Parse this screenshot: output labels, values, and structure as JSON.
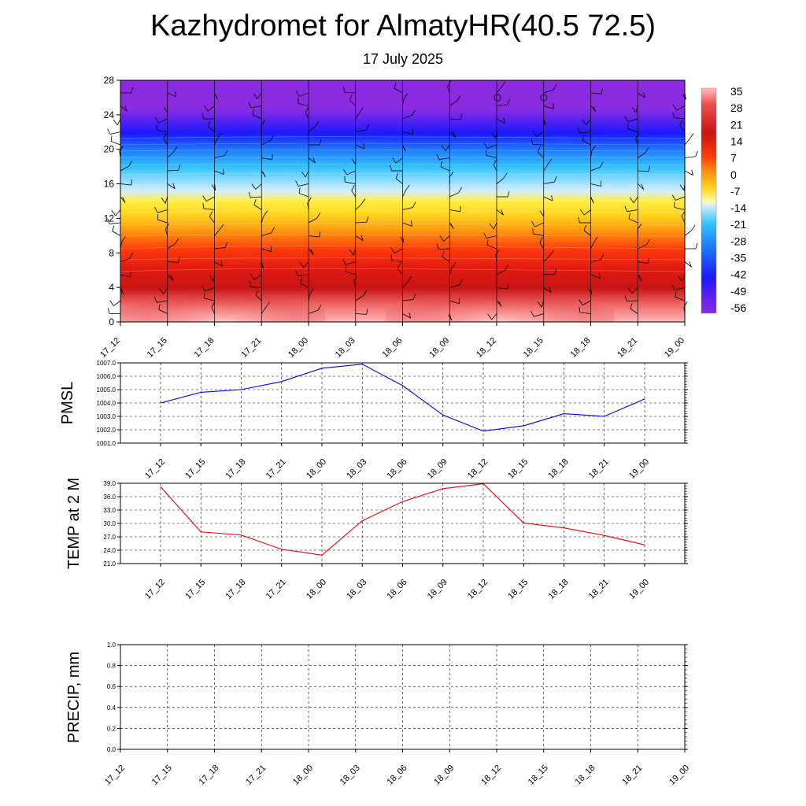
{
  "title": "Kazhydromet for AlmatyHR(40.5 72.5)",
  "subtitle": "17 July 2025",
  "time_labels": [
    "17_12",
    "17_15",
    "17_18",
    "17_21",
    "18_00",
    "18_03",
    "18_06",
    "18_09",
    "18_12",
    "18_15",
    "18_18",
    "18_21",
    "19_00"
  ],
  "chart_data": [
    {
      "type": "heatmap",
      "x": [
        "17_12",
        "17_15",
        "17_18",
        "17_21",
        "18_00",
        "18_03",
        "18_06",
        "18_09",
        "18_12",
        "18_15",
        "18_18",
        "18_21",
        "19_00"
      ],
      "ylim": [
        0,
        28
      ],
      "yticks": [
        0,
        4,
        8,
        12,
        16,
        20,
        24,
        28
      ],
      "colorbar_labels": [
        "35",
        "28",
        "21",
        "14",
        "7",
        "0",
        "-7",
        "-14",
        "-21",
        "-28",
        "-35",
        "-42",
        "-49",
        "-56"
      ],
      "overlay": "wind barbs",
      "colors": {
        "min": "#8a2be2",
        "max": "#ffc0c0"
      }
    },
    {
      "type": "line",
      "ylabel": "PMSL",
      "x": [
        "17_12",
        "17_15",
        "17_18",
        "17_21",
        "18_00",
        "18_03",
        "18_06",
        "18_09",
        "18_12",
        "18_15",
        "18_18",
        "18_21",
        "19_00"
      ],
      "values": [
        1004.0,
        1004.8,
        1005.0,
        1005.6,
        1006.6,
        1006.9,
        1005.3,
        1003.1,
        1001.9,
        1002.3,
        1003.2,
        1003.0,
        1004.3
      ],
      "ylim": [
        1001.0,
        1007.0
      ],
      "yticks": [
        "1001.0",
        "1002.0",
        "1003.0",
        "1004.0",
        "1005.0",
        "1006.0",
        "1007.0"
      ],
      "color": "#0000ee"
    },
    {
      "type": "line",
      "ylabel": "TEMP at 2 M",
      "x": [
        "17_12",
        "17_15",
        "17_18",
        "17_21",
        "18_00",
        "18_03",
        "18_06",
        "18_09",
        "18_12",
        "18_15",
        "18_18",
        "18_21",
        "19_00"
      ],
      "values": [
        38.2,
        28.1,
        27.4,
        24.2,
        22.9,
        30.6,
        34.9,
        37.8,
        38.9,
        30.1,
        29.0,
        27.3,
        25.2
      ],
      "ylim": [
        21.0,
        39.0
      ],
      "yticks": [
        "21.0",
        "24.0",
        "27.0",
        "30.0",
        "33.0",
        "36.0",
        "39.0"
      ],
      "color": "#ee0000"
    },
    {
      "type": "line",
      "ylabel": "PRECIP, mm",
      "x": [
        "17_12",
        "17_15",
        "17_18",
        "17_21",
        "18_00",
        "18_03",
        "18_06",
        "18_09",
        "18_12",
        "18_15",
        "18_18",
        "18_21",
        "19_00"
      ],
      "values": [
        0,
        0,
        0,
        0,
        0,
        0,
        0,
        0,
        0,
        0,
        0,
        0,
        0
      ],
      "ylim": [
        0.0,
        1.0
      ],
      "yticks": [
        "0.0",
        "0.2",
        "0.4",
        "0.6",
        "0.8",
        "1.0"
      ],
      "color": "#006400"
    }
  ]
}
